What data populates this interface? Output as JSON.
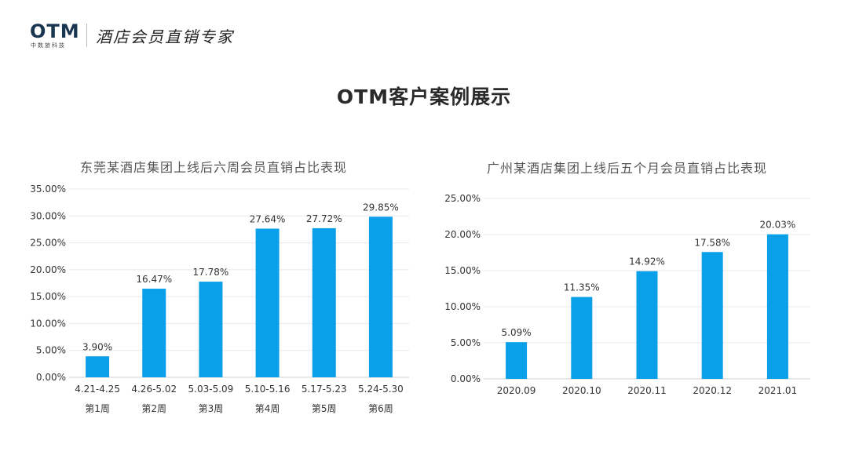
{
  "logo": {
    "mark": "OTM",
    "subtitle": "中数旅科技",
    "slogan": "酒店会员直销专家"
  },
  "page_title": "OTM客户案例展示",
  "colors": {
    "bar": "#0aa0e9",
    "grid": "#e8e8e8",
    "text": "#333333"
  },
  "chart_data": [
    {
      "type": "bar",
      "title": "东莞某酒店集团上线后六周会员直销占比表现",
      "categories": [
        "4.21-4.25",
        "4.26-5.02",
        "5.03-5.09",
        "5.10-5.16",
        "5.17-5.23",
        "5.24-5.30"
      ],
      "category_sublabels": [
        "第1周",
        "第2周",
        "第3周",
        "第4周",
        "第5周",
        "第6周"
      ],
      "values": [
        3.9,
        16.47,
        17.78,
        27.64,
        27.72,
        29.85
      ],
      "value_labels": [
        "3.90%",
        "16.47%",
        "17.78%",
        "27.64%",
        "27.72%",
        "29.85%"
      ],
      "y_ticks": [
        "0.00%",
        "5.00%",
        "10.00%",
        "15.00%",
        "20.00%",
        "25.00%",
        "30.00%",
        "35.00%"
      ],
      "ylim": [
        0,
        35
      ],
      "grid": true,
      "xlabel": "",
      "ylabel": ""
    },
    {
      "type": "bar",
      "title": "广州某酒店集团上线后五个月会员直销占比表现",
      "categories": [
        "2020.09",
        "2020.10",
        "2020.11",
        "2020.12",
        "2021.01"
      ],
      "values": [
        5.09,
        11.35,
        14.92,
        17.58,
        20.03
      ],
      "value_labels": [
        "5.09%",
        "11.35%",
        "14.92%",
        "17.58%",
        "20.03%"
      ],
      "y_ticks": [
        "0.00%",
        "5.00%",
        "10.00%",
        "15.00%",
        "20.00%",
        "25.00%"
      ],
      "ylim": [
        0,
        25
      ],
      "grid": true,
      "xlabel": "",
      "ylabel": ""
    }
  ]
}
